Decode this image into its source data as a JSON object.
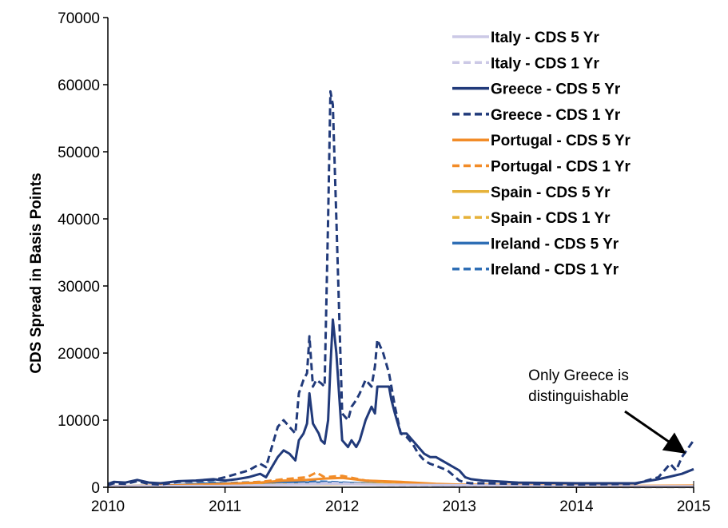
{
  "chart_data": {
    "type": "line",
    "title": "",
    "ylabel": "CDS Spread in Basis Points",
    "xlabel": "",
    "xlim": [
      2010,
      2015
    ],
    "ylim": [
      0,
      70000
    ],
    "xticks": [
      "2010",
      "2011",
      "2012",
      "2013",
      "2014",
      "2015"
    ],
    "yticks": [
      "0",
      "10000",
      "20000",
      "30000",
      "40000",
      "50000",
      "60000",
      "70000"
    ],
    "grid": false,
    "legend_position": "top-right",
    "annotation": {
      "lines": [
        "Only Greece is",
        "distinguishable"
      ],
      "arrow_to": [
        2014.92,
        5200
      ]
    },
    "series": [
      {
        "name": "Italy - CDS 5 Yr",
        "color": "#ccc9e6",
        "dash": "solid",
        "x": [
          2010,
          2010.5,
          2011,
          2011.5,
          2011.9,
          2012.3,
          2012.8,
          2013.5,
          2014,
          2014.5,
          2015
        ],
        "y": [
          150,
          180,
          220,
          350,
          500,
          400,
          350,
          250,
          180,
          140,
          150
        ]
      },
      {
        "name": "Italy - CDS 1 Yr",
        "color": "#ccc9e6",
        "dash": "dashed",
        "x": [
          2010,
          2010.5,
          2011,
          2011.5,
          2011.9,
          2012.3,
          2012.8,
          2013.5,
          2014,
          2014.5,
          2015
        ],
        "y": [
          80,
          120,
          180,
          400,
          650,
          380,
          250,
          150,
          90,
          60,
          60
        ]
      },
      {
        "name": "Greece - CDS 5 Yr",
        "color": "#213a7a",
        "dash": "solid",
        "x": [
          2010,
          2010.05,
          2010.15,
          2010.25,
          2010.35,
          2010.45,
          2010.6,
          2010.75,
          2010.9,
          2011,
          2011.1,
          2011.2,
          2011.3,
          2011.35,
          2011.4,
          2011.45,
          2011.5,
          2011.55,
          2011.6,
          2011.63,
          2011.67,
          2011.7,
          2011.72,
          2011.75,
          2011.8,
          2011.82,
          2011.85,
          2011.88,
          2011.9,
          2011.92,
          2011.95,
          2012,
          2012.05,
          2012.08,
          2012.12,
          2012.15,
          2012.2,
          2012.25,
          2012.28,
          2012.3,
          2012.35,
          2012.4,
          2012.42,
          2012.45,
          2012.5,
          2012.55,
          2012.6,
          2012.65,
          2012.7,
          2012.75,
          2012.8,
          2012.9,
          2013,
          2013.05,
          2013.1,
          2013.2,
          2013.5,
          2014,
          2014.5,
          2014.6,
          2014.7,
          2014.8,
          2014.9,
          2015
        ],
        "y": [
          500,
          800,
          700,
          1100,
          700,
          600,
          900,
          1000,
          1200,
          1000,
          1200,
          1500,
          2000,
          1500,
          3000,
          4500,
          5500,
          5000,
          4000,
          7000,
          8000,
          9500,
          14000,
          9500,
          8000,
          7000,
          6500,
          10000,
          18000,
          25000,
          20000,
          7000,
          6000,
          7000,
          6000,
          7000,
          10000,
          12000,
          11000,
          15000,
          15000,
          15000,
          13000,
          11000,
          8000,
          8000,
          7000,
          6000,
          5000,
          4500,
          4500,
          3500,
          2500,
          1500,
          1200,
          1000,
          700,
          600,
          600,
          900,
          1200,
          1600,
          2000,
          2700
        ]
      },
      {
        "name": "Greece - CDS 1 Yr",
        "color": "#213a7a",
        "dash": "dashed",
        "x": [
          2010,
          2010.05,
          2010.15,
          2010.25,
          2010.35,
          2010.45,
          2010.6,
          2010.75,
          2010.9,
          2011,
          2011.1,
          2011.2,
          2011.3,
          2011.35,
          2011.4,
          2011.45,
          2011.5,
          2011.55,
          2011.6,
          2011.63,
          2011.67,
          2011.7,
          2011.72,
          2011.75,
          2011.78,
          2011.82,
          2011.85,
          2011.88,
          2011.9,
          2011.92,
          2011.95,
          2012,
          2012.05,
          2012.08,
          2012.12,
          2012.15,
          2012.2,
          2012.25,
          2012.28,
          2012.3,
          2012.35,
          2012.4,
          2012.42,
          2012.45,
          2012.5,
          2012.55,
          2012.6,
          2012.65,
          2012.7,
          2012.75,
          2012.8,
          2012.9,
          2013,
          2013.05,
          2013.1,
          2013.2,
          2013.5,
          2014,
          2014.5,
          2014.6,
          2014.7,
          2014.75,
          2014.8,
          2014.85,
          2014.9,
          2015
        ],
        "y": [
          300,
          600,
          500,
          900,
          500,
          400,
          800,
          900,
          1100,
          1500,
          2000,
          2500,
          3500,
          3000,
          6000,
          9000,
          10000,
          9000,
          8000,
          14000,
          16000,
          17000,
          22500,
          15000,
          16000,
          15500,
          15000,
          40000,
          59000,
          57000,
          40000,
          11000,
          10000,
          12000,
          13000,
          14000,
          16000,
          15000,
          18000,
          22000,
          20000,
          17000,
          15000,
          12000,
          8000,
          7500,
          6500,
          5000,
          4000,
          3500,
          3200,
          2500,
          1000,
          700,
          600,
          600,
          500,
          400,
          500,
          1000,
          1500,
          2500,
          3500,
          2500,
          4500,
          7000
        ]
      },
      {
        "name": "Portugal - CDS 5 Yr",
        "color": "#f28c28",
        "dash": "solid",
        "x": [
          2010,
          2010.5,
          2011,
          2011.3,
          2011.5,
          2011.7,
          2011.85,
          2012,
          2012.2,
          2012.5,
          2012.8,
          2013,
          2013.5,
          2014,
          2014.5,
          2015
        ],
        "y": [
          150,
          250,
          500,
          700,
          1000,
          1100,
          1300,
          1400,
          1000,
          800,
          500,
          400,
          350,
          200,
          200,
          250
        ]
      },
      {
        "name": "Portugal - CDS 1 Yr",
        "color": "#f28c28",
        "dash": "dashed",
        "x": [
          2010,
          2010.5,
          2011,
          2011.3,
          2011.5,
          2011.7,
          2011.78,
          2011.85,
          2012,
          2012.2,
          2012.5,
          2012.8,
          2013,
          2013.5,
          2014,
          2014.5,
          2015
        ],
        "y": [
          100,
          200,
          500,
          800,
          1200,
          1500,
          2200,
          1500,
          1700,
          1000,
          700,
          400,
          300,
          200,
          100,
          80,
          80
        ]
      },
      {
        "name": "Spain - CDS 5 Yr",
        "color": "#e6b23a",
        "dash": "solid",
        "x": [
          2010,
          2010.5,
          2011,
          2011.5,
          2011.9,
          2012.3,
          2012.6,
          2013,
          2013.5,
          2014,
          2014.5,
          2015
        ],
        "y": [
          100,
          200,
          300,
          400,
          450,
          500,
          550,
          300,
          250,
          150,
          120,
          120
        ]
      },
      {
        "name": "Spain - CDS 1 Yr",
        "color": "#e6b23a",
        "dash": "dashed",
        "x": [
          2010,
          2010.5,
          2011,
          2011.5,
          2011.9,
          2012.3,
          2012.6,
          2013,
          2013.5,
          2014,
          2014.5,
          2015
        ],
        "y": [
          60,
          150,
          250,
          400,
          550,
          500,
          600,
          250,
          150,
          80,
          50,
          50
        ]
      },
      {
        "name": "Ireland - CDS 5 Yr",
        "color": "#2e6eb5",
        "dash": "solid",
        "x": [
          2010,
          2010.5,
          2010.9,
          2011,
          2011.3,
          2011.5,
          2011.7,
          2011.9,
          2012.2,
          2012.5,
          2012.8,
          2013,
          2013.5,
          2014,
          2014.5,
          2015
        ],
        "y": [
          150,
          250,
          600,
          550,
          650,
          800,
          700,
          700,
          600,
          500,
          350,
          250,
          180,
          120,
          100,
          100
        ]
      },
      {
        "name": "Ireland - CDS 1 Yr",
        "color": "#2e6eb5",
        "dash": "dashed",
        "x": [
          2010,
          2010.5,
          2010.9,
          2011,
          2011.3,
          2011.5,
          2011.7,
          2011.9,
          2012.2,
          2012.5,
          2012.8,
          2013,
          2013.5,
          2014,
          2014.5,
          2015
        ],
        "y": [
          80,
          200,
          700,
          600,
          800,
          1100,
          900,
          800,
          550,
          400,
          250,
          150,
          100,
          60,
          50,
          50
        ]
      }
    ]
  }
}
